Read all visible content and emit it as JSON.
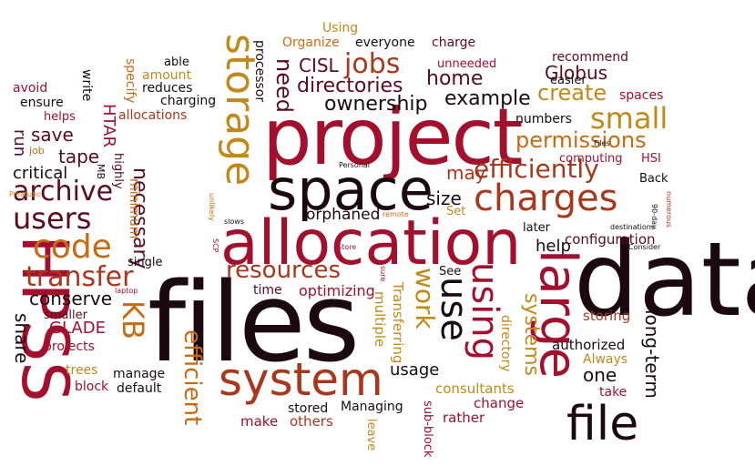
{
  "palette": {
    "black": "#1a0a10",
    "maroon": "#5c0a1e",
    "crimson": "#a3102e",
    "rust": "#a8371c",
    "orange": "#c86a12",
    "gold": "#c0891a"
  },
  "words": [
    {
      "text": "data",
      "color": "black"
    },
    {
      "text": "files",
      "color": "black"
    },
    {
      "text": "project",
      "color": "crimson"
    },
    {
      "text": "allocation",
      "color": "crimson"
    },
    {
      "text": "space",
      "color": "black"
    },
    {
      "text": "HPSS",
      "color": "crimson"
    },
    {
      "text": "system",
      "color": "rust"
    },
    {
      "text": "storage",
      "color": "gold"
    },
    {
      "text": "large",
      "color": "crimson"
    },
    {
      "text": "file",
      "color": "black"
    },
    {
      "text": "charges",
      "color": "rust"
    },
    {
      "text": "using",
      "color": "crimson"
    },
    {
      "text": "use",
      "color": "black"
    },
    {
      "text": "efficiently",
      "color": "rust"
    },
    {
      "text": "resources",
      "color": "rust"
    },
    {
      "text": "users",
      "color": "maroon"
    },
    {
      "text": "archive",
      "color": "maroon"
    },
    {
      "text": "code",
      "color": "orange"
    },
    {
      "text": "transfer",
      "color": "rust"
    },
    {
      "text": "KB",
      "color": "orange"
    },
    {
      "text": "small",
      "color": "gold"
    },
    {
      "text": "jobs",
      "color": "rust"
    },
    {
      "text": "work",
      "color": "gold"
    },
    {
      "text": "systems",
      "color": "gold"
    },
    {
      "text": "need",
      "color": "maroon"
    },
    {
      "text": "efficient",
      "color": "orange"
    },
    {
      "text": "permissions",
      "color": "orange"
    },
    {
      "text": "create",
      "color": "gold"
    },
    {
      "text": "directories",
      "color": "maroon"
    },
    {
      "text": "ownership",
      "color": "black"
    },
    {
      "text": "example",
      "color": "black"
    },
    {
      "text": "home",
      "color": "maroon"
    },
    {
      "text": "Globus",
      "color": "maroon"
    },
    {
      "text": "CISL",
      "color": "maroon"
    },
    {
      "text": "necessary",
      "color": "maroon"
    },
    {
      "text": "conserve",
      "color": "black"
    },
    {
      "text": "long-term",
      "color": "black"
    },
    {
      "text": "save",
      "color": "maroon"
    },
    {
      "text": "tape",
      "color": "maroon"
    },
    {
      "text": "critical",
      "color": "black"
    },
    {
      "text": "run",
      "color": "maroon"
    },
    {
      "text": "may",
      "color": "rust"
    },
    {
      "text": "size",
      "color": "black"
    },
    {
      "text": "usage",
      "color": "black"
    },
    {
      "text": "GLADE",
      "color": "crimson"
    },
    {
      "text": "share",
      "color": "black"
    },
    {
      "text": "HTAR",
      "color": "crimson"
    },
    {
      "text": "optimizing",
      "color": "crimson"
    },
    {
      "text": "orphaned",
      "color": "black"
    },
    {
      "text": "one",
      "color": "black"
    },
    {
      "text": "help",
      "color": "black"
    },
    {
      "text": "processor",
      "color": "black"
    },
    {
      "text": "directory",
      "color": "gold"
    },
    {
      "text": "multiple",
      "color": "gold"
    },
    {
      "text": "Transferring",
      "color": "gold"
    },
    {
      "text": "configuration",
      "color": "maroon"
    },
    {
      "text": "authorized",
      "color": "black"
    },
    {
      "text": "storing",
      "color": "rust"
    },
    {
      "text": "consultants",
      "color": "gold"
    },
    {
      "text": "Managing",
      "color": "black"
    },
    {
      "text": "others",
      "color": "rust"
    },
    {
      "text": "stored",
      "color": "black"
    },
    {
      "text": "make",
      "color": "crimson"
    },
    {
      "text": "rather",
      "color": "crimson"
    },
    {
      "text": "change",
      "color": "crimson"
    },
    {
      "text": "leave",
      "color": "gold"
    },
    {
      "text": "sub-block",
      "color": "crimson"
    },
    {
      "text": "take",
      "color": "crimson"
    },
    {
      "text": "Always",
      "color": "gold"
    },
    {
      "text": "numbers",
      "color": "black"
    },
    {
      "text": "easier",
      "color": "black"
    },
    {
      "text": "recommend",
      "color": "maroon"
    },
    {
      "text": "spaces",
      "color": "crimson"
    },
    {
      "text": "computing",
      "color": "crimson"
    },
    {
      "text": "HSI",
      "color": "crimson"
    },
    {
      "text": "Back",
      "color": "black"
    },
    {
      "text": "later",
      "color": "black"
    },
    {
      "text": "Set",
      "color": "gold"
    },
    {
      "text": "See",
      "color": "black"
    },
    {
      "text": "time",
      "color": "maroon"
    },
    {
      "text": "single",
      "color": "black"
    },
    {
      "text": "minimum",
      "color": "orange"
    },
    {
      "text": "highly",
      "color": "maroon"
    },
    {
      "text": "MB",
      "color": "black"
    },
    {
      "text": "specify",
      "color": "orange"
    },
    {
      "text": "charging",
      "color": "black"
    },
    {
      "text": "reduces",
      "color": "black"
    },
    {
      "text": "amount",
      "color": "gold"
    },
    {
      "text": "able",
      "color": "black"
    },
    {
      "text": "allocations",
      "color": "rust"
    },
    {
      "text": "helps",
      "color": "crimson"
    },
    {
      "text": "ensure",
      "color": "black"
    },
    {
      "text": "avoid",
      "color": "crimson"
    },
    {
      "text": "write",
      "color": "black"
    },
    {
      "text": "job",
      "color": "orange"
    },
    {
      "text": "Using",
      "color": "gold"
    },
    {
      "text": "Organize",
      "color": "orange"
    },
    {
      "text": "everyone",
      "color": "black"
    },
    {
      "text": "charge",
      "color": "maroon"
    },
    {
      "text": "unneeded",
      "color": "crimson"
    },
    {
      "text": "smaller",
      "color": "maroon"
    },
    {
      "text": "projects",
      "color": "crimson"
    },
    {
      "text": "trees",
      "color": "gold"
    },
    {
      "text": "manage",
      "color": "black"
    },
    {
      "text": "block",
      "color": "crimson"
    },
    {
      "text": "default",
      "color": "black"
    },
    {
      "text": "Personal",
      "color": "black"
    },
    {
      "text": "Pinatubo",
      "color": "gold"
    },
    {
      "text": "unlikely",
      "color": "orange"
    },
    {
      "text": "slows",
      "color": "black"
    },
    {
      "text": "remote",
      "color": "orange"
    },
    {
      "text": "SCP",
      "color": "crimson"
    },
    {
      "text": "Store",
      "color": "crimson"
    },
    {
      "text": "sure",
      "color": "crimson"
    },
    {
      "text": "laptop",
      "color": "crimson"
    },
    {
      "text": "destinations",
      "color": "black"
    },
    {
      "text": "Consider",
      "color": "black"
    },
    {
      "text": "numerous",
      "color": "rust"
    },
    {
      "text": "90-day",
      "color": "black"
    },
    {
      "text": "Files",
      "color": "black"
    }
  ]
}
